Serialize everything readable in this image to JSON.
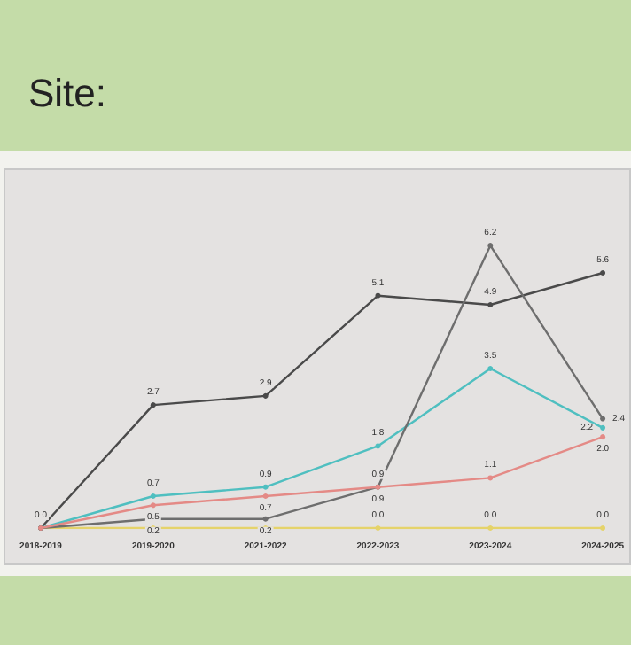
{
  "chart_data": {
    "type": "line",
    "title": "Site:",
    "categories": [
      "2018-2019",
      "2019-2020",
      "2021-2022",
      "2022-2023",
      "2023-2024",
      "2024-2025"
    ],
    "series": [
      {
        "color": "#4a4a4a",
        "values": [
          0.0,
          2.7,
          2.9,
          5.1,
          4.9,
          5.6
        ],
        "value_labels": [
          "0.0",
          "2.7",
          "2.9",
          "5.1",
          "4.9",
          "5.6"
        ]
      },
      {
        "color": "#6e6e6e",
        "values": [
          0.0,
          0.2,
          0.2,
          0.9,
          6.2,
          2.4
        ],
        "value_labels": [
          null,
          "0.2",
          "0.2",
          "0.9",
          "6.2",
          "2.4"
        ]
      },
      {
        "color": "#4fbfc0",
        "values": [
          0.0,
          0.7,
          0.9,
          1.8,
          3.5,
          2.2
        ],
        "value_labels": [
          null,
          "0.7",
          "0.9",
          "1.8",
          "3.5",
          "2.2"
        ]
      },
      {
        "color": "#e48a86",
        "values": [
          0.0,
          0.5,
          0.7,
          0.9,
          1.1,
          2.0
        ],
        "value_labels": [
          null,
          "0.5",
          "0.7",
          "0.9",
          "1.1",
          "2.0"
        ]
      },
      {
        "color": "#e5d36a",
        "values": [
          0.0,
          0.0,
          0.0,
          0.0,
          0.0,
          0.0
        ],
        "value_labels": [
          null,
          null,
          null,
          "0.0",
          "0.0",
          "0.0"
        ]
      }
    ],
    "marker": "circle",
    "grid": false
  }
}
